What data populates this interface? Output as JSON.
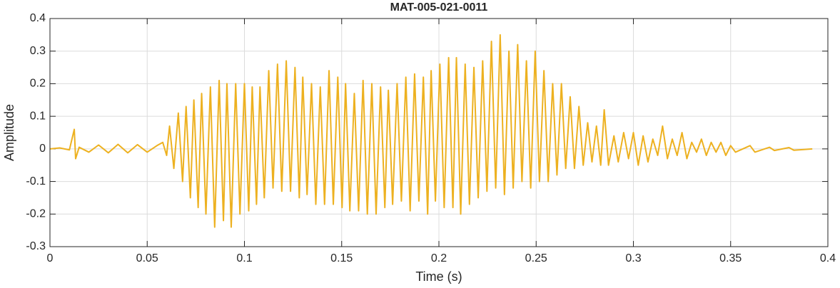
{
  "chart_data": {
    "type": "line",
    "title": "MAT-005-021-0011",
    "xlabel": "Time (s)",
    "ylabel": "Amplitude",
    "xlim": [
      0,
      0.4
    ],
    "ylim": [
      -0.3,
      0.4
    ],
    "xticks": [
      0,
      0.05,
      0.1,
      0.15,
      0.2,
      0.25,
      0.3,
      0.35,
      0.4
    ],
    "yticks": [
      -0.3,
      -0.2,
      -0.1,
      0,
      0.1,
      0.2,
      0.3,
      0.4
    ],
    "grid": true,
    "x": [
      0,
      0.005,
      0.01,
      0.0125,
      0.0132,
      0.015,
      0.02,
      0.025,
      0.03,
      0.035,
      0.04,
      0.045,
      0.05,
      0.055,
      0.058,
      0.06,
      0.0615,
      0.0637,
      0.066,
      0.0682,
      0.07,
      0.0722,
      0.074,
      0.0762,
      0.078,
      0.0802,
      0.0825,
      0.0847,
      0.087,
      0.0892,
      0.091,
      0.0932,
      0.0955,
      0.0977,
      0.1,
      0.1022,
      0.104,
      0.1062,
      0.108,
      0.1102,
      0.1125,
      0.1147,
      0.117,
      0.1192,
      0.1215,
      0.1237,
      0.126,
      0.1282,
      0.13,
      0.1322,
      0.1345,
      0.1367,
      0.139,
      0.1412,
      0.1435,
      0.1457,
      0.148,
      0.1502,
      0.152,
      0.1542,
      0.1565,
      0.1587,
      0.161,
      0.1632,
      0.1655,
      0.1677,
      0.17,
      0.1722,
      0.174,
      0.1762,
      0.1785,
      0.1807,
      0.183,
      0.1852,
      0.1875,
      0.1897,
      0.192,
      0.1942,
      0.196,
      0.1982,
      0.2005,
      0.2027,
      0.205,
      0.2072,
      0.209,
      0.2112,
      0.2135,
      0.2157,
      0.218,
      0.2202,
      0.2225,
      0.2247,
      0.227,
      0.2292,
      0.2315,
      0.2337,
      0.236,
      0.2382,
      0.2405,
      0.2427,
      0.245,
      0.2472,
      0.2495,
      0.2517,
      0.254,
      0.2562,
      0.2585,
      0.2607,
      0.263,
      0.2652,
      0.2675,
      0.2697,
      0.272,
      0.2742,
      0.2765,
      0.2787,
      0.281,
      0.2832,
      0.285,
      0.2872,
      0.29,
      0.2922,
      0.295,
      0.2975,
      0.3,
      0.3025,
      0.305,
      0.3075,
      0.31,
      0.3125,
      0.315,
      0.3175,
      0.32,
      0.3225,
      0.325,
      0.3275,
      0.33,
      0.3325,
      0.335,
      0.3375,
      0.34,
      0.3425,
      0.345,
      0.3475,
      0.35,
      0.3525,
      0.36,
      0.3625,
      0.37,
      0.3725,
      0.38,
      0.3825,
      0.392
    ],
    "series": [
      {
        "name": "Amplitude",
        "color": "#EDB120",
        "values": [
          0,
          0.003,
          -0.003,
          0.06,
          -0.03,
          0.005,
          -0.01,
          0.012,
          -0.012,
          0.014,
          -0.012,
          0.013,
          -0.01,
          0.01,
          0.02,
          -0.02,
          0.07,
          -0.06,
          0.11,
          -0.1,
          0.13,
          -0.15,
          0.15,
          -0.18,
          0.17,
          -0.2,
          0.19,
          -0.24,
          0.21,
          -0.22,
          0.2,
          -0.24,
          0.2,
          -0.2,
          0.2,
          -0.19,
          0.19,
          -0.17,
          0.19,
          -0.15,
          0.24,
          -0.12,
          0.26,
          -0.13,
          0.27,
          -0.13,
          0.25,
          -0.15,
          0.22,
          -0.14,
          0.2,
          -0.17,
          0.19,
          -0.17,
          0.24,
          -0.17,
          0.22,
          -0.18,
          0.2,
          -0.19,
          0.17,
          -0.19,
          0.21,
          -0.2,
          0.2,
          -0.2,
          0.19,
          -0.18,
          0.18,
          -0.17,
          0.2,
          -0.16,
          0.22,
          -0.19,
          0.23,
          -0.16,
          0.22,
          -0.2,
          0.24,
          -0.16,
          0.26,
          -0.18,
          0.28,
          -0.18,
          0.28,
          -0.2,
          0.26,
          -0.17,
          0.25,
          -0.15,
          0.27,
          -0.13,
          0.33,
          -0.12,
          0.35,
          -0.14,
          0.3,
          -0.12,
          0.32,
          -0.1,
          0.27,
          -0.12,
          0.3,
          -0.1,
          0.24,
          -0.1,
          0.2,
          -0.08,
          0.2,
          -0.06,
          0.16,
          -0.06,
          0.13,
          -0.05,
          0.08,
          -0.04,
          0.07,
          -0.05,
          0.12,
          -0.05,
          0.04,
          -0.04,
          0.05,
          -0.03,
          0.05,
          -0.05,
          0.04,
          -0.04,
          0.03,
          -0.02,
          0.07,
          -0.03,
          0.03,
          -0.02,
          0.05,
          -0.03,
          0.02,
          -0.01,
          0.03,
          -0.02,
          0.02,
          -0.01,
          0.02,
          -0.02,
          0.01,
          -0.01,
          0.01,
          -0.01,
          0.005,
          -0.005,
          0.004,
          -0.004,
          0
        ]
      }
    ]
  }
}
